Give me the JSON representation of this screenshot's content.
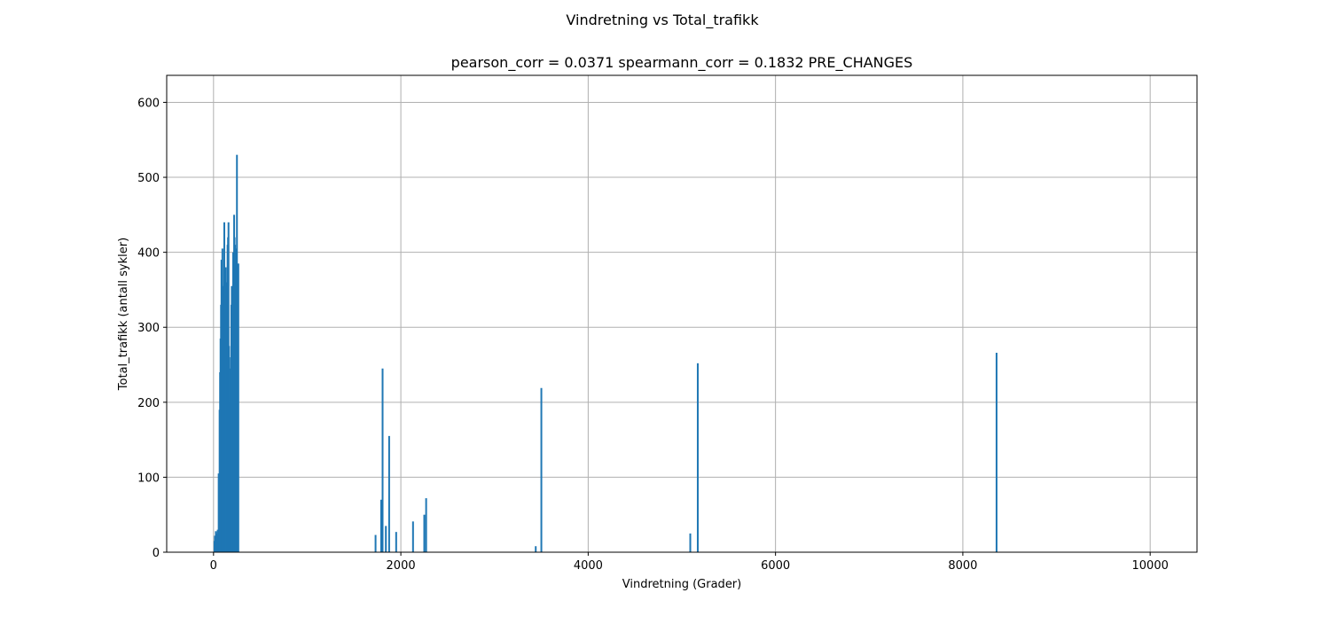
{
  "chart_data": {
    "type": "bar",
    "suptitle": "Vindretning vs Total_trafikk",
    "title": "pearson_corr = 0.0371 spearmann_corr = 0.1832 PRE_CHANGES",
    "xlabel": "Vindretning (Grader)",
    "ylabel": "Total_trafikk (antall sykler)",
    "xlim": [
      -500,
      10500
    ],
    "ylim": [
      0,
      636
    ],
    "xticks": [
      0,
      2000,
      4000,
      6000,
      8000,
      10000
    ],
    "yticks": [
      0,
      100,
      200,
      300,
      400,
      500,
      600
    ],
    "grid": true,
    "bar_color": "#1f77b4",
    "bar_width": 2,
    "cluster": {
      "x_start": 10,
      "x_step": 5,
      "values": [
        15,
        22,
        10,
        28,
        18,
        25,
        12,
        30,
        22,
        105,
        45,
        190,
        240,
        285,
        330,
        390,
        375,
        405,
        355,
        295,
        340,
        440,
        360,
        320,
        380,
        330,
        300,
        360,
        410,
        420,
        440,
        275,
        260,
        200,
        190,
        245,
        330,
        355,
        315,
        290,
        400,
        385,
        450,
        420,
        410,
        380,
        400,
        405,
        530,
        360,
        330,
        385
      ]
    },
    "points": [
      {
        "x": 1730,
        "y": 23
      },
      {
        "x": 1790,
        "y": 70
      },
      {
        "x": 1805,
        "y": 245
      },
      {
        "x": 1840,
        "y": 35
      },
      {
        "x": 1875,
        "y": 155
      },
      {
        "x": 1950,
        "y": 27
      },
      {
        "x": 2130,
        "y": 41
      },
      {
        "x": 2250,
        "y": 50
      },
      {
        "x": 2270,
        "y": 72
      },
      {
        "x": 3440,
        "y": 8
      },
      {
        "x": 3500,
        "y": 219
      },
      {
        "x": 5090,
        "y": 25
      },
      {
        "x": 5170,
        "y": 252
      },
      {
        "x": 8360,
        "y": 266
      }
    ]
  }
}
